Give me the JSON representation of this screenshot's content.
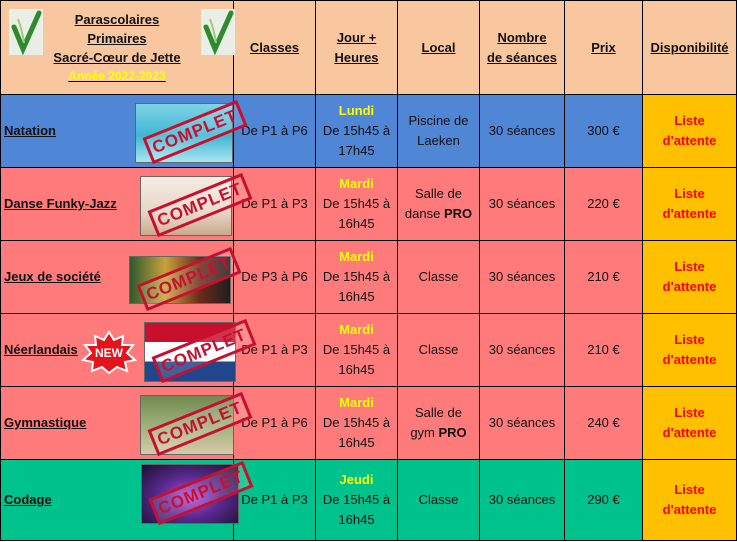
{
  "header": {
    "title_line1": "Parascolaires",
    "title_line2": "Primaires",
    "title_line3": "Sacré-Cœur de Jette",
    "year": "Année 2022-2023",
    "col_classes": "Classes",
    "col_jour_1": "Jour +",
    "col_jour_2": "Heures",
    "col_local": "Local",
    "col_seances_1": "Nombre",
    "col_seances_2": "de séances",
    "col_prix": "Prix",
    "col_dispo": "Disponibilité"
  },
  "stamp_text": "COMPLET",
  "new_badge": "NEW",
  "rows": [
    {
      "name": "Natation",
      "classes": "De P1 à P6",
      "day": "Lundi",
      "time_1": "De 15h45 à",
      "time_2": "17h45",
      "local_1": "Piscine de",
      "local_2": "Laeken",
      "local_bold": "",
      "seances": "30 séances",
      "prix": "300 €",
      "dispo_1": "Liste",
      "dispo_2": "d'attente"
    },
    {
      "name": "Danse Funky-Jazz",
      "classes": "De P1 à P3",
      "day": "Mardi",
      "time_1": "De 15h45 à",
      "time_2": "16h45",
      "local_1": "Salle de",
      "local_2": "danse ",
      "local_bold": "PRO",
      "seances": "30 séances",
      "prix": "220 €",
      "dispo_1": "Liste",
      "dispo_2": "d'attente"
    },
    {
      "name": "Jeux de société",
      "classes": "De P3 à P6",
      "day": "Mardi",
      "time_1": "De 15h45 à",
      "time_2": "16h45",
      "local_1": "Classe",
      "local_2": "",
      "local_bold": "",
      "seances": "30 séances",
      "prix": "210 €",
      "dispo_1": "Liste",
      "dispo_2": "d'attente"
    },
    {
      "name": "Néerlandais",
      "classes": "De P1 à P3",
      "day": "Mardi",
      "time_1": "De 15h45 à",
      "time_2": "16h45",
      "local_1": "Classe",
      "local_2": "",
      "local_bold": "",
      "seances": "30 séances",
      "prix": "210 €",
      "dispo_1": "Liste",
      "dispo_2": "d'attente"
    },
    {
      "name": "Gymnastique",
      "classes": "De P1 à P6",
      "day": "Mardi",
      "time_1": "De 15h45 à",
      "time_2": "16h45",
      "local_1": "Salle de",
      "local_2": "gym ",
      "local_bold": "PRO",
      "seances": "30 séances",
      "prix": "240 €",
      "dispo_1": "Liste",
      "dispo_2": "d'attente"
    },
    {
      "name": "Codage",
      "classes": "De P1 à P3",
      "day": "Jeudi",
      "time_1": "De 15h45 à",
      "time_2": "16h45",
      "local_1": "Classe",
      "local_2": "",
      "local_bold": "",
      "seances": "30 séances",
      "prix": "290 €",
      "dispo_1": "Liste",
      "dispo_2": "d'attente"
    }
  ],
  "colors": {
    "header": "#f9c79f",
    "natation": "#4f86d6",
    "pink": "#ff7b7b",
    "codage": "#00c28c",
    "dispo": "#ffc000"
  }
}
